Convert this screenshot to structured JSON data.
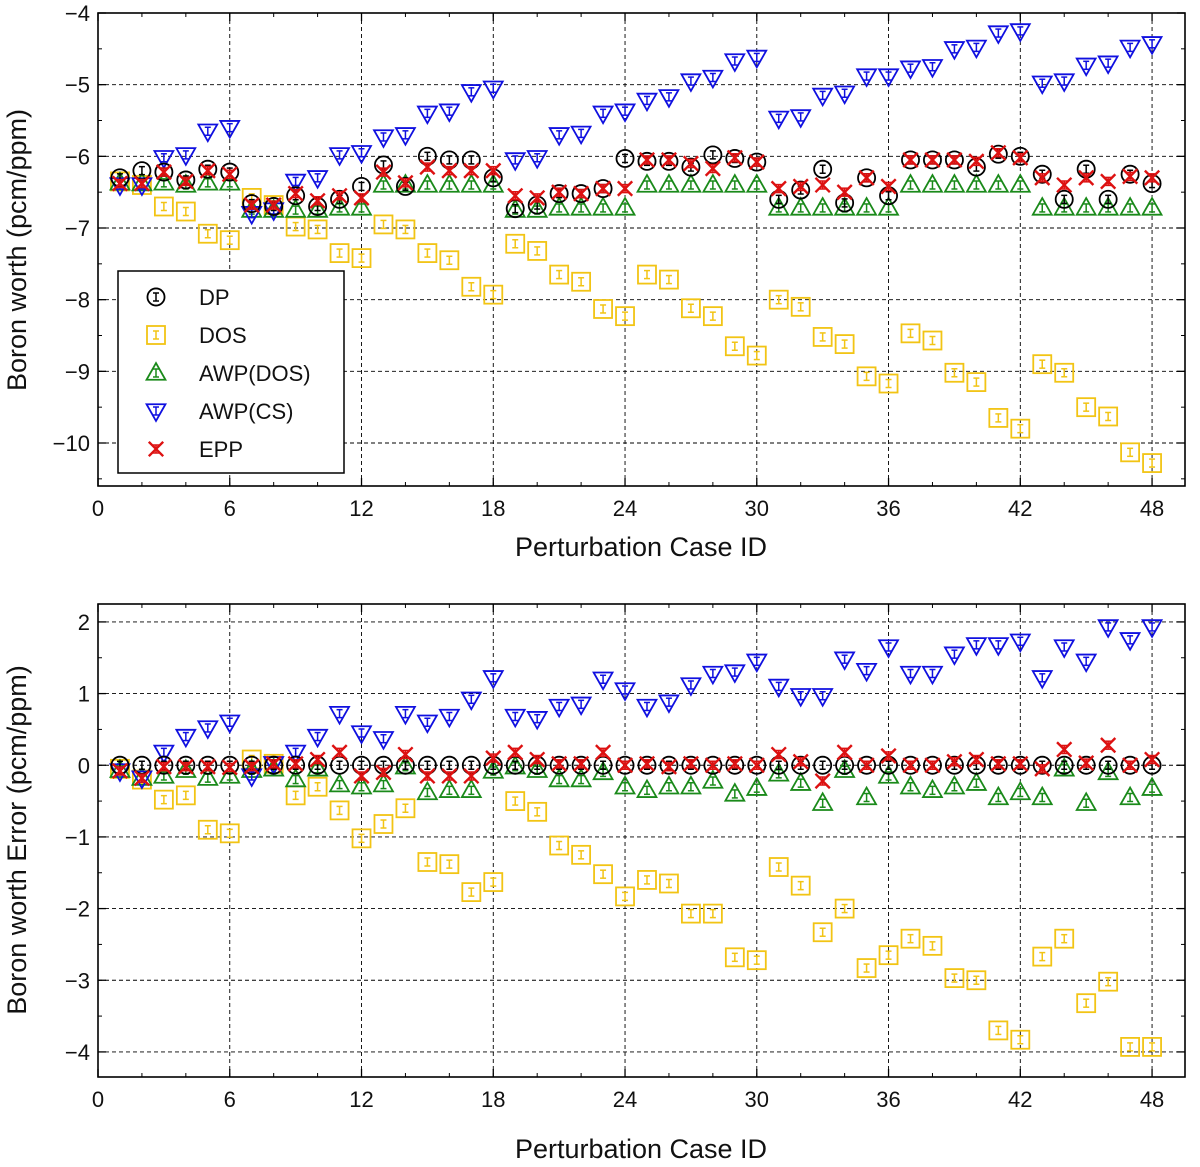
{
  "chart_data": [
    {
      "type": "scatter",
      "panel": "top",
      "title": "",
      "xlabel": "Perturbation Case ID",
      "ylabel": "Boron worth (pcm/ppm)",
      "xlim": [
        0,
        49.5
      ],
      "ylim": [
        -10.6,
        -4.0
      ],
      "xticks": [
        0,
        6,
        12,
        18,
        24,
        30,
        36,
        42,
        48
      ],
      "yticks": [
        -4,
        -5,
        -6,
        -7,
        -8,
        -9,
        -10
      ],
      "grid": true,
      "legend_position": "lower-left",
      "x": [
        1,
        2,
        3,
        4,
        5,
        6,
        7,
        8,
        9,
        10,
        11,
        12,
        13,
        14,
        15,
        16,
        17,
        18,
        19,
        20,
        21,
        22,
        23,
        24,
        25,
        26,
        27,
        28,
        29,
        30,
        31,
        32,
        33,
        34,
        35,
        36,
        37,
        38,
        39,
        40,
        41,
        42,
        43,
        44,
        45,
        46,
        47,
        48
      ],
      "series": [
        {
          "name": "DP",
          "marker": "circle",
          "color": "#000000",
          "values": [
            -6.3,
            -6.2,
            -6.22,
            -6.33,
            -6.18,
            -6.22,
            -6.66,
            -6.7,
            -6.55,
            -6.7,
            -6.6,
            -6.42,
            -6.12,
            -6.42,
            -6.0,
            -6.05,
            -6.05,
            -6.3,
            -6.73,
            -6.68,
            -6.52,
            -6.52,
            -6.45,
            -6.03,
            -6.07,
            -6.07,
            -6.15,
            -5.98,
            -6.03,
            -6.08,
            -6.6,
            -6.47,
            -6.18,
            -6.65,
            -6.3,
            -6.55,
            -6.05,
            -6.05,
            -6.05,
            -6.15,
            -5.97,
            -6.0,
            -6.25,
            -6.6,
            -6.18,
            -6.6,
            -6.25,
            -6.38
          ]
        },
        {
          "name": "DOS",
          "marker": "square",
          "color": "#f2c414",
          "values": [
            -6.35,
            -6.4,
            -6.7,
            -6.77,
            -7.08,
            -7.17,
            -6.58,
            -6.68,
            -6.98,
            -7.02,
            -7.35,
            -7.42,
            -6.95,
            -7.02,
            -7.35,
            -7.45,
            -7.82,
            -7.93,
            -7.22,
            -7.32,
            -7.65,
            -7.75,
            -8.13,
            -8.23,
            -7.65,
            -7.72,
            -8.12,
            -8.23,
            -8.65,
            -8.78,
            -8.0,
            -8.1,
            -8.52,
            -8.62,
            -9.07,
            -9.17,
            -8.47,
            -8.57,
            -9.02,
            -9.15,
            -9.65,
            -9.8,
            -8.9,
            -9.02,
            -9.5,
            -9.63,
            -10.13,
            -10.28
          ]
        },
        {
          "name": "AWP(DOS)",
          "marker": "triangle-up",
          "color": "#1a8a1a",
          "values": [
            -6.37,
            -6.38,
            -6.37,
            -6.4,
            -6.37,
            -6.37,
            -6.75,
            -6.75,
            -6.75,
            -6.75,
            -6.72,
            -6.72,
            -6.4,
            -6.4,
            -6.4,
            -6.4,
            -6.4,
            -6.4,
            -6.75,
            -6.75,
            -6.72,
            -6.72,
            -6.72,
            -6.72,
            -6.4,
            -6.4,
            -6.4,
            -6.4,
            -6.4,
            -6.4,
            -6.72,
            -6.72,
            -6.72,
            -6.72,
            -6.72,
            -6.72,
            -6.4,
            -6.4,
            -6.4,
            -6.4,
            -6.4,
            -6.4,
            -6.72,
            -6.72,
            -6.72,
            -6.72,
            -6.72,
            -6.72
          ]
        },
        {
          "name": "AWP(CS)",
          "marker": "triangle-down",
          "color": "#1010e0",
          "values": [
            -6.4,
            -6.4,
            -6.02,
            -5.98,
            -5.65,
            -5.6,
            -6.8,
            -6.75,
            -6.35,
            -6.3,
            -5.98,
            -5.95,
            -5.73,
            -5.7,
            -5.4,
            -5.37,
            -5.1,
            -5.05,
            -6.05,
            -6.02,
            -5.7,
            -5.68,
            -5.4,
            -5.37,
            -5.22,
            -5.17,
            -4.95,
            -4.9,
            -4.67,
            -4.62,
            -5.47,
            -5.45,
            -5.15,
            -5.12,
            -4.88,
            -4.88,
            -4.77,
            -4.75,
            -4.5,
            -4.48,
            -4.28,
            -4.25,
            -4.98,
            -4.95,
            -4.73,
            -4.7,
            -4.48,
            -4.43
          ]
        },
        {
          "name": "EPP",
          "marker": "x",
          "color": "#dd1111",
          "values": [
            -6.38,
            -6.38,
            -6.22,
            -6.35,
            -6.2,
            -6.25,
            -6.68,
            -6.68,
            -6.52,
            -6.62,
            -6.55,
            -6.58,
            -6.22,
            -6.37,
            -6.15,
            -6.2,
            -6.2,
            -6.2,
            -6.55,
            -6.58,
            -6.5,
            -6.52,
            -6.45,
            -6.45,
            -6.05,
            -6.05,
            -6.1,
            -6.17,
            -6.02,
            -6.08,
            -6.45,
            -6.42,
            -6.4,
            -6.5,
            -6.3,
            -6.42,
            -6.05,
            -6.05,
            -6.05,
            -6.07,
            -5.95,
            -6.02,
            -6.3,
            -6.4,
            -6.3,
            -6.35,
            -6.28,
            -6.3
          ]
        }
      ]
    },
    {
      "type": "scatter",
      "panel": "bottom",
      "title": "",
      "xlabel": "Perturbation Case ID",
      "ylabel": "Boron worth Error (pcm/ppm)",
      "xlim": [
        0,
        49.5
      ],
      "ylim": [
        -4.35,
        2.25
      ],
      "xticks": [
        0,
        6,
        12,
        18,
        24,
        30,
        36,
        42,
        48
      ],
      "yticks": [
        2,
        1,
        0,
        -1,
        -2,
        -3,
        -4
      ],
      "grid": true,
      "x": [
        1,
        2,
        3,
        4,
        5,
        6,
        7,
        8,
        9,
        10,
        11,
        12,
        13,
        14,
        15,
        16,
        17,
        18,
        19,
        20,
        21,
        22,
        23,
        24,
        25,
        26,
        27,
        28,
        29,
        30,
        31,
        32,
        33,
        34,
        35,
        36,
        37,
        38,
        39,
        40,
        41,
        42,
        43,
        44,
        45,
        46,
        47,
        48
      ],
      "series": [
        {
          "name": "DP",
          "marker": "circle",
          "color": "#000000",
          "values": [
            0,
            0,
            0,
            0,
            0,
            0,
            0,
            0,
            0,
            0,
            0,
            0,
            0,
            0,
            0,
            0,
            0,
            0,
            0,
            0,
            0,
            0,
            0,
            0,
            0,
            0,
            0,
            0,
            0,
            0,
            0,
            0,
            0,
            0,
            0,
            0,
            0,
            0,
            0,
            0,
            0,
            0,
            0,
            0,
            0,
            0,
            0,
            0
          ]
        },
        {
          "name": "DOS",
          "marker": "square",
          "color": "#f2c414",
          "values": [
            -0.05,
            -0.2,
            -0.48,
            -0.42,
            -0.9,
            -0.95,
            0.08,
            0.02,
            -0.42,
            -0.3,
            -0.63,
            -1.02,
            -0.82,
            -0.6,
            -1.35,
            -1.38,
            -1.77,
            -1.63,
            -0.5,
            -0.65,
            -1.12,
            -1.25,
            -1.52,
            -1.83,
            -1.6,
            -1.65,
            -2.07,
            -2.07,
            -2.68,
            -2.72,
            -1.42,
            -1.68,
            -2.33,
            -2.0,
            -2.83,
            -2.65,
            -2.42,
            -2.52,
            -2.97,
            -3.0,
            -3.7,
            -3.83,
            -2.67,
            -2.42,
            -3.32,
            -3.02,
            -3.93,
            -3.93
          ]
        },
        {
          "name": "AWP(DOS)",
          "marker": "triangle-up",
          "color": "#1a8a1a",
          "values": [
            -0.07,
            -0.18,
            -0.15,
            -0.07,
            -0.18,
            -0.15,
            -0.07,
            -0.05,
            -0.2,
            -0.05,
            -0.27,
            -0.3,
            -0.27,
            -0.02,
            -0.38,
            -0.35,
            -0.35,
            -0.08,
            -0.02,
            -0.07,
            -0.2,
            -0.2,
            -0.1,
            -0.3,
            -0.35,
            -0.3,
            -0.3,
            -0.22,
            -0.4,
            -0.32,
            -0.12,
            -0.25,
            -0.53,
            -0.07,
            -0.45,
            -0.15,
            -0.3,
            -0.35,
            -0.3,
            -0.25,
            -0.45,
            -0.38,
            -0.45,
            -0.05,
            -0.53,
            -0.1,
            -0.45,
            -0.32
          ]
        },
        {
          "name": "AWP(CS)",
          "marker": "triangle-down",
          "color": "#1010e0",
          "values": [
            -0.08,
            -0.18,
            0.18,
            0.4,
            0.52,
            0.6,
            -0.15,
            0.02,
            0.18,
            0.4,
            0.72,
            0.45,
            0.37,
            0.72,
            0.6,
            0.68,
            0.92,
            1.22,
            0.68,
            0.65,
            0.82,
            0.85,
            1.2,
            1.05,
            0.82,
            0.88,
            1.12,
            1.28,
            1.3,
            1.45,
            1.1,
            0.97,
            0.97,
            1.48,
            1.32,
            1.65,
            1.28,
            1.28,
            1.55,
            1.68,
            1.68,
            1.73,
            1.22,
            1.65,
            1.45,
            1.93,
            1.75,
            1.93
          ]
        },
        {
          "name": "EPP",
          "marker": "x",
          "color": "#dd1111",
          "values": [
            -0.08,
            -0.18,
            -0.02,
            -0.02,
            -0.02,
            -0.03,
            -0.02,
            0.02,
            0.02,
            0.08,
            0.18,
            -0.15,
            -0.1,
            0.15,
            -0.15,
            -0.15,
            -0.15,
            0.1,
            0.18,
            0.08,
            0.02,
            0.02,
            0.18,
            0.0,
            0.02,
            -0.02,
            0.02,
            0.0,
            0.02,
            0.0,
            0.15,
            0.05,
            -0.22,
            0.18,
            0.0,
            0.13,
            0.0,
            0.0,
            0.05,
            0.08,
            0.02,
            0.02,
            -0.05,
            0.22,
            0.03,
            0.28,
            0.0,
            0.08
          ]
        }
      ]
    }
  ]
}
